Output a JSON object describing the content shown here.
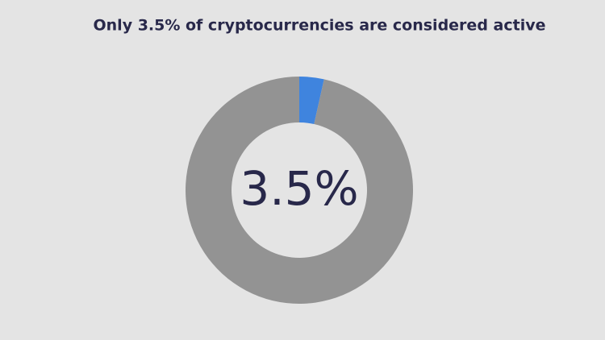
{
  "chart_data": {
    "type": "donut",
    "title": "Only 3.5% of cryptocurrencies are considered active",
    "categories": [
      null,
      null
    ],
    "values": [
      3.5,
      96.5
    ],
    "colors": [
      "#3f84de",
      "#939393"
    ],
    "value_labels": [
      "3.5%",
      null
    ]
  }
}
